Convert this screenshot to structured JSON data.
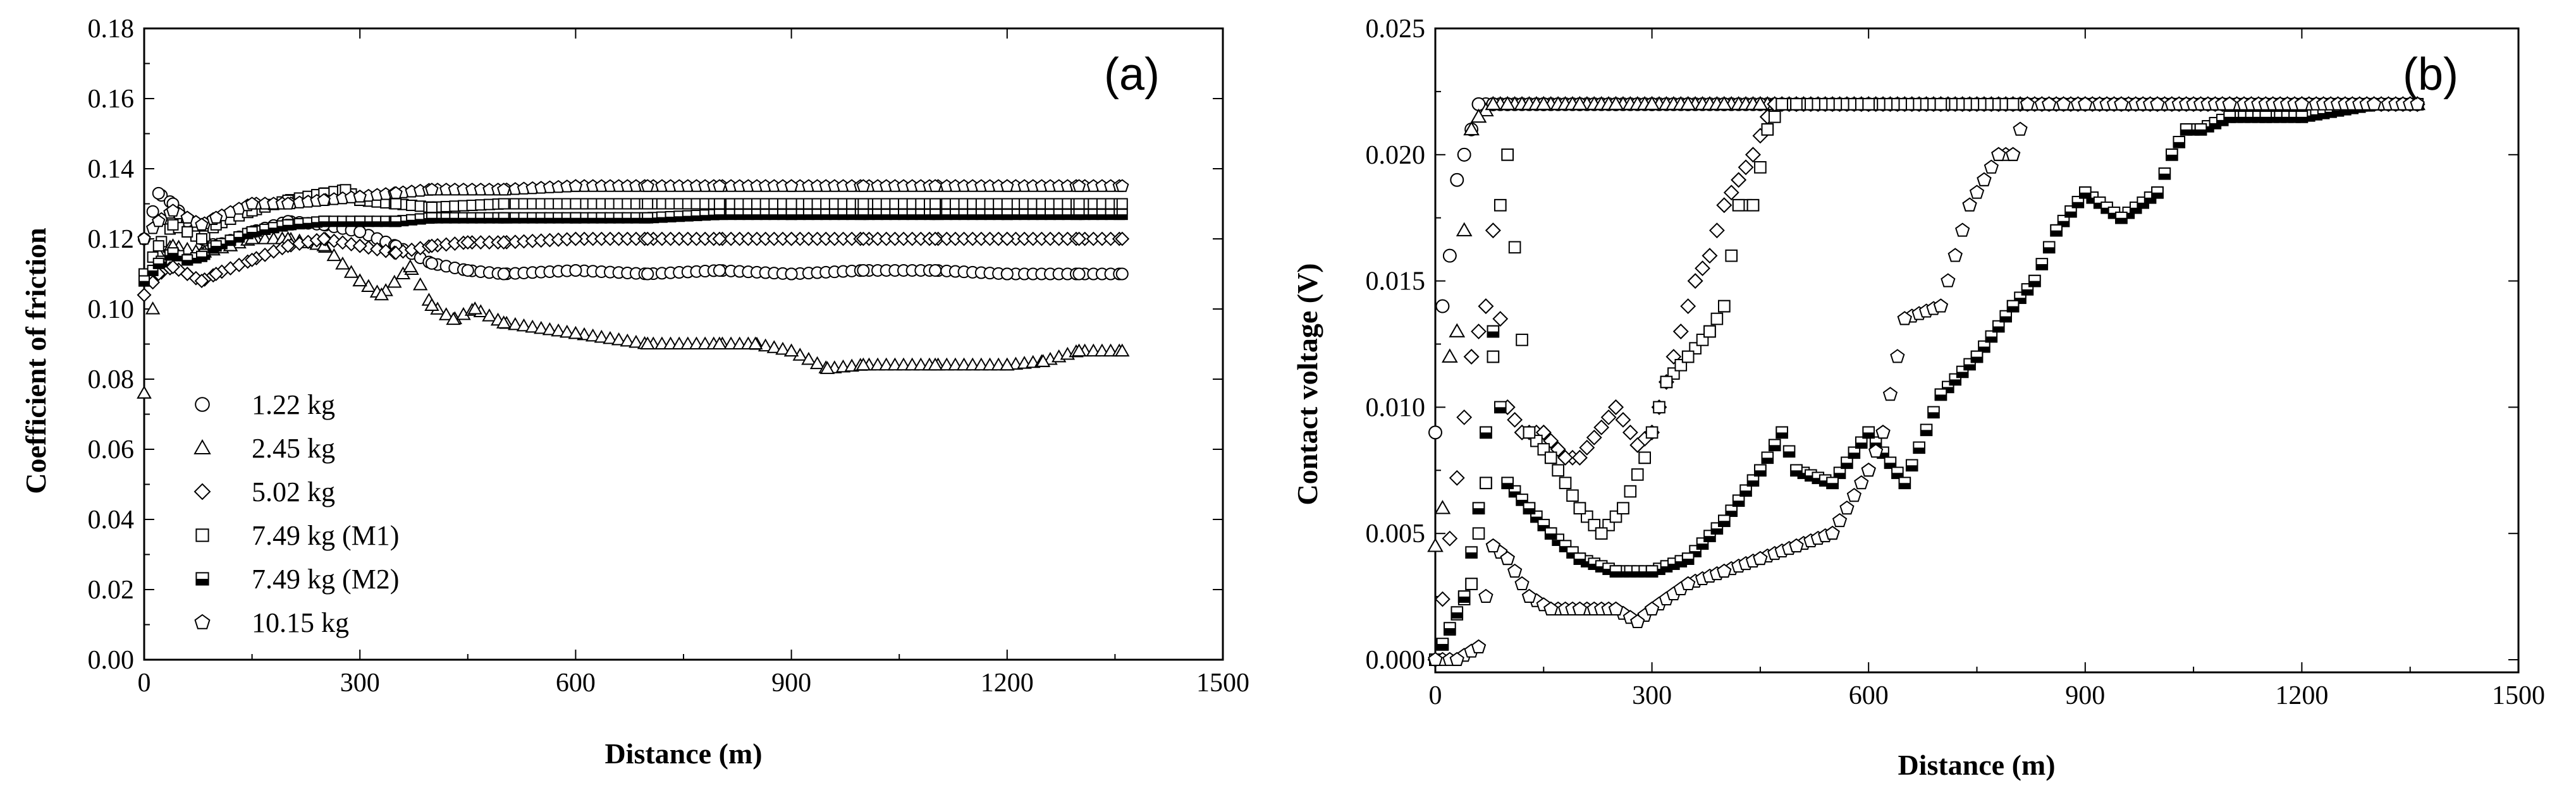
{
  "chart_data": [
    {
      "type": "scatter",
      "panel_label": "(a)",
      "title": "",
      "xlabel": "Distance (m)",
      "ylabel": "Coefficient of friction",
      "xlim": [
        0,
        1500
      ],
      "ylim": [
        0,
        0.18
      ],
      "xticks": [
        "0",
        "300",
        "600",
        "900",
        "1200",
        "1500"
      ],
      "yticks": [
        "0.00",
        "0.02",
        "0.04",
        "0.06",
        "0.08",
        "0.10",
        "0.12",
        "0.14",
        "0.16",
        "0.18"
      ],
      "legend_position": "bottom-left",
      "series": [
        {
          "name": "1.22 kg",
          "marker": "circle",
          "x": [
            0,
            20,
            40,
            60,
            80,
            100,
            150,
            200,
            250,
            300,
            350,
            400,
            450,
            500,
            600,
            700,
            800,
            900,
            1000,
            1100,
            1200,
            1300,
            1360
          ],
          "y": [
            0.12,
            0.133,
            0.13,
            0.125,
            0.12,
            0.118,
            0.122,
            0.125,
            0.124,
            0.122,
            0.118,
            0.113,
            0.111,
            0.11,
            0.111,
            0.11,
            0.111,
            0.11,
            0.111,
            0.111,
            0.11,
            0.11,
            0.11
          ]
        },
        {
          "name": "2.45 kg",
          "marker": "triangle",
          "x": [
            0,
            20,
            40,
            80,
            120,
            150,
            200,
            250,
            300,
            330,
            370,
            400,
            430,
            460,
            500,
            600,
            700,
            800,
            850,
            900,
            950,
            1000,
            1100,
            1200,
            1250,
            1300,
            1360
          ],
          "y": [
            0.076,
            0.116,
            0.118,
            0.116,
            0.118,
            0.12,
            0.12,
            0.118,
            0.108,
            0.104,
            0.112,
            0.101,
            0.097,
            0.1,
            0.096,
            0.093,
            0.09,
            0.09,
            0.09,
            0.088,
            0.083,
            0.084,
            0.084,
            0.084,
            0.085,
            0.088,
            0.088
          ]
        },
        {
          "name": "5.02 kg",
          "marker": "diamond",
          "x": [
            0,
            20,
            40,
            60,
            80,
            100,
            150,
            200,
            250,
            300,
            350,
            400,
            450,
            500,
            600,
            700,
            800,
            900,
            1000,
            1100,
            1200,
            1300,
            1360
          ],
          "y": [
            0.104,
            0.11,
            0.112,
            0.11,
            0.108,
            0.11,
            0.114,
            0.118,
            0.12,
            0.118,
            0.116,
            0.118,
            0.119,
            0.119,
            0.12,
            0.12,
            0.12,
            0.12,
            0.12,
            0.12,
            0.12,
            0.12,
            0.12
          ]
        },
        {
          "name": "7.49 kg (M1)",
          "marker": "square",
          "x": [
            0,
            20,
            40,
            60,
            80,
            100,
            150,
            200,
            250,
            280,
            300,
            350,
            400,
            500,
            600,
            700,
            800,
            900,
            1000,
            1100,
            1200,
            1300,
            1360
          ],
          "y": [
            0.11,
            0.118,
            0.124,
            0.122,
            0.12,
            0.124,
            0.128,
            0.131,
            0.133,
            0.134,
            0.131,
            0.13,
            0.129,
            0.13,
            0.13,
            0.13,
            0.13,
            0.13,
            0.13,
            0.13,
            0.13,
            0.13,
            0.13
          ]
        },
        {
          "name": "7.49 kg (M2)",
          "marker": "half-square",
          "x": [
            0,
            20,
            40,
            60,
            80,
            100,
            150,
            200,
            250,
            300,
            350,
            400,
            500,
            600,
            700,
            800,
            900,
            1000,
            1100,
            1200,
            1300,
            1360
          ],
          "y": [
            0.108,
            0.113,
            0.116,
            0.114,
            0.115,
            0.118,
            0.122,
            0.124,
            0.125,
            0.125,
            0.125,
            0.126,
            0.126,
            0.126,
            0.126,
            0.127,
            0.127,
            0.127,
            0.127,
            0.127,
            0.127,
            0.127
          ]
        },
        {
          "name": "10.15 kg",
          "marker": "pentagon",
          "x": [
            0,
            20,
            40,
            60,
            80,
            100,
            150,
            200,
            250,
            300,
            350,
            400,
            500,
            600,
            700,
            800,
            900,
            1000,
            1100,
            1200,
            1300,
            1360
          ],
          "y": [
            0.12,
            0.125,
            0.128,
            0.126,
            0.124,
            0.126,
            0.13,
            0.13,
            0.131,
            0.132,
            0.133,
            0.134,
            0.134,
            0.135,
            0.135,
            0.135,
            0.135,
            0.135,
            0.135,
            0.135,
            0.135,
            0.135
          ]
        }
      ]
    },
    {
      "type": "scatter",
      "panel_label": "(b)",
      "title": "",
      "xlabel": "Distance (m)",
      "ylabel": "Contact voltage (V)",
      "xlim": [
        0,
        1500
      ],
      "ylim": [
        -0.0005,
        0.025
      ],
      "xticks": [
        "0",
        "300",
        "600",
        "900",
        "1200",
        "1500"
      ],
      "yticks": [
        "0.000",
        "0.005",
        "0.010",
        "0.015",
        "0.020",
        "0.025"
      ],
      "series": [
        {
          "name": "1.22 kg",
          "marker": "circle",
          "x": [
            0,
            10,
            20,
            30,
            40,
            60,
            80,
            100,
            150,
            200,
            250,
            300,
            350,
            400,
            450,
            500,
            550,
            600,
            640,
            680,
            700,
            740,
            760,
            780,
            800,
            820,
            850,
            870,
            900,
            950,
            1000,
            1100,
            1200,
            1300,
            1360
          ],
          "y": [
            0.009,
            0.014,
            0.016,
            0.019,
            0.02,
            0.022,
            0.022,
            0.022,
            0.022,
            0.022,
            0.022,
            0.022,
            0.022,
            0.022,
            0.022,
            0.022,
            0.022,
            0.022,
            0.022,
            0.022,
            0.022,
            0.022,
            0.022,
            0.022,
            0.022,
            0.022,
            0.022,
            0.022,
            0.022,
            0.022,
            0.022,
            0.022,
            0.022,
            0.022,
            0.022
          ]
        },
        {
          "name": "2.45 kg",
          "marker": "triangle",
          "x": [
            0,
            10,
            20,
            30,
            40,
            50,
            60,
            80,
            100,
            150,
            200,
            250,
            300,
            350,
            400,
            450,
            500,
            600,
            700,
            800,
            900,
            1000,
            1100,
            1200,
            1300,
            1360
          ],
          "y": [
            0.0045,
            0.006,
            0.012,
            0.013,
            0.017,
            0.021,
            0.0215,
            0.022,
            0.022,
            0.022,
            0.022,
            0.022,
            0.022,
            0.022,
            0.022,
            0.022,
            0.022,
            0.022,
            0.022,
            0.022,
            0.022,
            0.022,
            0.022,
            0.022,
            0.022,
            0.022
          ]
        },
        {
          "name": "5.02 kg",
          "marker": "diamond",
          "x": [
            0,
            50,
            70,
            80,
            100,
            120,
            150,
            180,
            200,
            250,
            280,
            300,
            320,
            340,
            360,
            380,
            400,
            420,
            440,
            460,
            470,
            500,
            600,
            700,
            800,
            900,
            1000,
            1100,
            1200,
            1300,
            1360
          ],
          "y": [
            0.0,
            0.012,
            0.014,
            0.017,
            0.01,
            0.009,
            0.009,
            0.008,
            0.008,
            0.01,
            0.0085,
            0.009,
            0.011,
            0.013,
            0.015,
            0.016,
            0.018,
            0.019,
            0.02,
            0.0215,
            0.022,
            0.022,
            0.022,
            0.022,
            0.022,
            0.022,
            0.022,
            0.022,
            0.022,
            0.022,
            0.022
          ]
        },
        {
          "name": "7.49 kg (M1)",
          "marker": "square",
          "x": [
            0,
            50,
            70,
            80,
            90,
            100,
            130,
            160,
            200,
            230,
            260,
            290,
            320,
            350,
            380,
            400,
            420,
            440,
            460,
            480,
            500,
            600,
            700,
            800,
            900,
            1000,
            1100,
            1200,
            1300,
            1360
          ],
          "y": [
            0.0,
            0.003,
            0.007,
            0.012,
            0.018,
            0.02,
            0.009,
            0.008,
            0.006,
            0.005,
            0.006,
            0.008,
            0.011,
            0.012,
            0.013,
            0.014,
            0.018,
            0.018,
            0.021,
            0.022,
            0.022,
            0.022,
            0.022,
            0.022,
            0.022,
            0.022,
            0.022,
            0.022,
            0.022,
            0.022
          ]
        },
        {
          "name": "7.49 kg (M2)",
          "marker": "half-square",
          "x": [
            0,
            40,
            60,
            70,
            80,
            100,
            130,
            160,
            200,
            250,
            300,
            350,
            400,
            450,
            480,
            500,
            550,
            600,
            650,
            700,
            750,
            800,
            830,
            860,
            900,
            950,
            1000,
            1020,
            1040,
            1060,
            1100,
            1150,
            1200,
            1300,
            1360
          ],
          "y": [
            0.0,
            0.0025,
            0.006,
            0.009,
            0.013,
            0.007,
            0.006,
            0.005,
            0.004,
            0.0035,
            0.0035,
            0.004,
            0.0055,
            0.0075,
            0.009,
            0.0075,
            0.007,
            0.009,
            0.007,
            0.0105,
            0.012,
            0.014,
            0.015,
            0.017,
            0.0185,
            0.0175,
            0.0185,
            0.02,
            0.021,
            0.021,
            0.0215,
            0.0215,
            0.0215,
            0.022,
            0.022
          ]
        },
        {
          "name": "10.15 kg",
          "marker": "pentagon",
          "x": [
            0,
            30,
            60,
            80,
            100,
            130,
            160,
            200,
            250,
            280,
            300,
            350,
            400,
            450,
            500,
            550,
            600,
            620,
            650,
            700,
            720,
            740,
            760,
            780,
            800,
            820,
            850,
            870,
            900,
            950,
            1000,
            1100,
            1200,
            1300,
            1360
          ],
          "y": [
            0.0,
            0.0,
            0.0005,
            0.0045,
            0.004,
            0.0025,
            0.002,
            0.002,
            0.002,
            0.0015,
            0.002,
            0.003,
            0.0035,
            0.004,
            0.0045,
            0.005,
            0.0075,
            0.009,
            0.0135,
            0.014,
            0.016,
            0.018,
            0.019,
            0.02,
            0.02,
            0.022,
            0.022,
            0.022,
            0.022,
            0.022,
            0.022,
            0.022,
            0.022,
            0.022,
            0.022
          ]
        }
      ]
    }
  ]
}
